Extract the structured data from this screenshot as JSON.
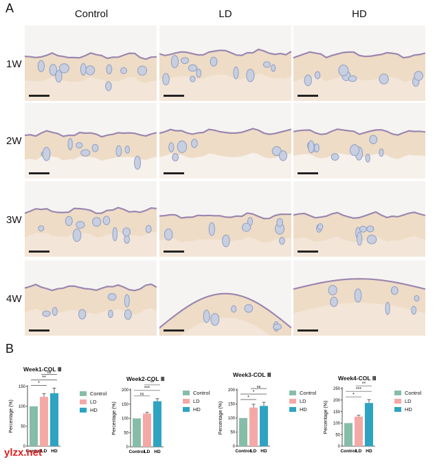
{
  "figure": {
    "panel_a_label": "A",
    "panel_b_label": "B",
    "columns": [
      "Control",
      "LD",
      "HD"
    ],
    "rows": [
      "1W",
      "2W",
      "3W",
      "4W"
    ],
    "watermark": "ylzx.net"
  },
  "colors": {
    "Control": "#86bda8",
    "LD": "#f4a9a6",
    "HD": "#2fa3c2"
  },
  "chart_data": [
    {
      "type": "bar",
      "title": "Week1-COL Ⅲ",
      "ylabel": "Percentage (%)",
      "categories": [
        "Control",
        "LD",
        "HD"
      ],
      "values": [
        100,
        124,
        133
      ],
      "errors": [
        0,
        8,
        13
      ],
      "ylim": [
        0,
        150
      ],
      "yticks": [
        0,
        50,
        100,
        150
      ],
      "grid": false,
      "legend": {
        "position": "right",
        "entries": [
          "Control",
          "LD",
          "HD"
        ]
      },
      "significance": [
        {
          "pair": [
            "Control",
            "LD"
          ],
          "label": "*"
        },
        {
          "pair": [
            "Control",
            "HD"
          ],
          "label": "**"
        },
        {
          "pair": [
            "LD",
            "HD"
          ],
          "label": "ns"
        }
      ]
    },
    {
      "type": "bar",
      "title": "Week2-COL Ⅲ",
      "ylabel": "Percentage (%)",
      "categories": [
        "Control",
        "LD",
        "HD"
      ],
      "values": [
        100,
        117,
        160
      ],
      "errors": [
        0,
        4,
        9
      ],
      "ylim": [
        0,
        200
      ],
      "yticks": [
        0,
        50,
        100,
        150,
        200
      ],
      "grid": false,
      "legend": {
        "position": "right",
        "entries": [
          "Control",
          "LD",
          "HD"
        ]
      },
      "significance": [
        {
          "pair": [
            "Control",
            "LD"
          ],
          "label": "ns"
        },
        {
          "pair": [
            "Control",
            "HD"
          ],
          "label": "***"
        },
        {
          "pair": [
            "LD",
            "HD"
          ],
          "label": "**"
        }
      ]
    },
    {
      "type": "bar",
      "title": "Week3-COL Ⅲ",
      "ylabel": "Percentage (%)",
      "categories": [
        "Control",
        "LD",
        "HD"
      ],
      "values": [
        100,
        137,
        143
      ],
      "errors": [
        0,
        12,
        13
      ],
      "ylim": [
        0,
        200
      ],
      "yticks": [
        0,
        50,
        100,
        150,
        200
      ],
      "grid": false,
      "legend": {
        "position": "right",
        "entries": [
          "Control",
          "LD",
          "HD"
        ]
      },
      "significance": [
        {
          "pair": [
            "Control",
            "LD"
          ],
          "label": "*"
        },
        {
          "pair": [
            "Control",
            "HD"
          ],
          "label": "*"
        },
        {
          "pair": [
            "LD",
            "HD"
          ],
          "label": "ns"
        }
      ]
    },
    {
      "type": "bar",
      "title": "Week4-COL Ⅲ",
      "ylabel": "Percentage (%)",
      "categories": [
        "Control",
        "LD",
        "HD"
      ],
      "values": [
        100,
        128,
        187
      ],
      "errors": [
        0,
        6,
        15
      ],
      "ylim": [
        0,
        250
      ],
      "yticks": [
        0,
        50,
        100,
        150,
        200,
        250
      ],
      "grid": false,
      "legend": {
        "position": "right",
        "entries": [
          "Control",
          "LD",
          "HD"
        ]
      },
      "significance": [
        {
          "pair": [
            "Control",
            "LD"
          ],
          "label": "*"
        },
        {
          "pair": [
            "Control",
            "HD"
          ],
          "label": "***"
        },
        {
          "pair": [
            "LD",
            "HD"
          ],
          "label": "**"
        }
      ]
    }
  ]
}
